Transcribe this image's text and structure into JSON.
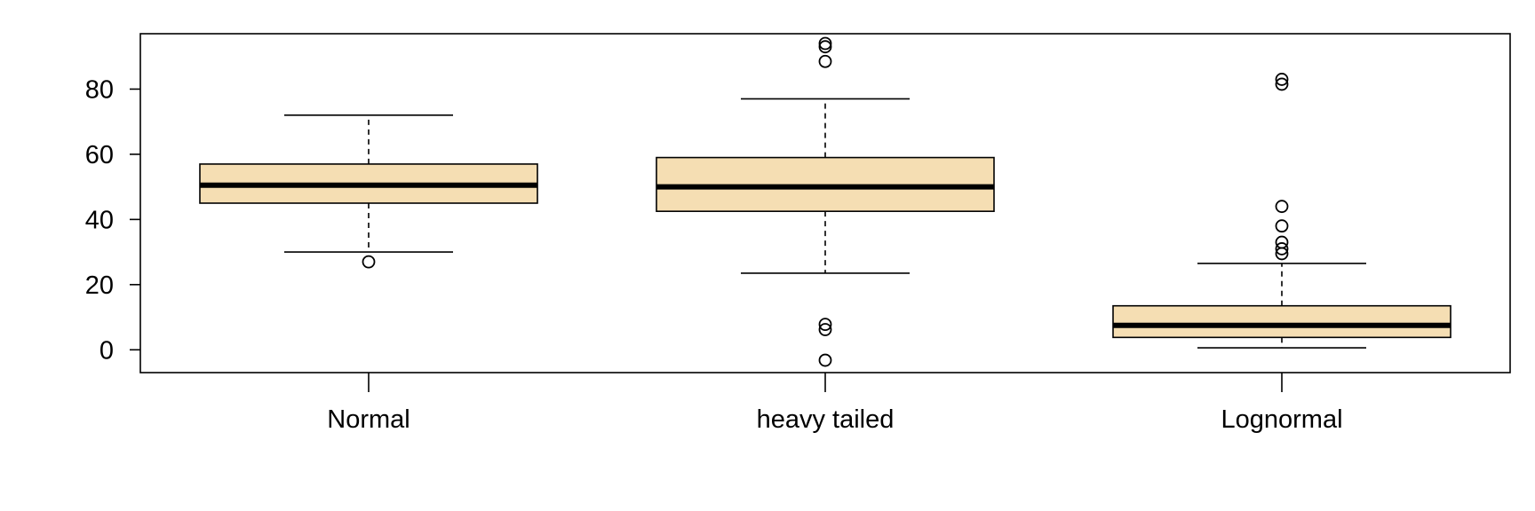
{
  "chart_data": {
    "type": "boxplot",
    "title": "",
    "xlabel": "",
    "ylabel": "",
    "ylim": [
      -7,
      97
    ],
    "yticks": [
      0,
      20,
      40,
      60,
      80
    ],
    "ytick_labels": [
      "0",
      "20",
      "40",
      "60",
      "80"
    ],
    "categories": [
      "Normal",
      "heavy tailed",
      "Lognormal"
    ],
    "box_fill": "#F5DEB3",
    "line_color": "#000000",
    "boxes": [
      {
        "category": "Normal",
        "whisker_low": 30,
        "q1": 45,
        "median": 50.5,
        "q3": 57,
        "whisker_high": 72,
        "outliers": [
          27
        ]
      },
      {
        "category": "heavy tailed",
        "whisker_low": 23.5,
        "q1": 42.5,
        "median": 50,
        "q3": 59,
        "whisker_high": 77,
        "outliers": [
          -3.2,
          6.2,
          7.8,
          88.5,
          93,
          94
        ]
      },
      {
        "category": "Lognormal",
        "whisker_low": 0.6,
        "q1": 3.8,
        "median": 7.5,
        "q3": 13.5,
        "whisker_high": 26.5,
        "outliers": [
          29.5,
          31,
          33,
          38,
          44,
          81.5,
          83
        ]
      }
    ]
  }
}
